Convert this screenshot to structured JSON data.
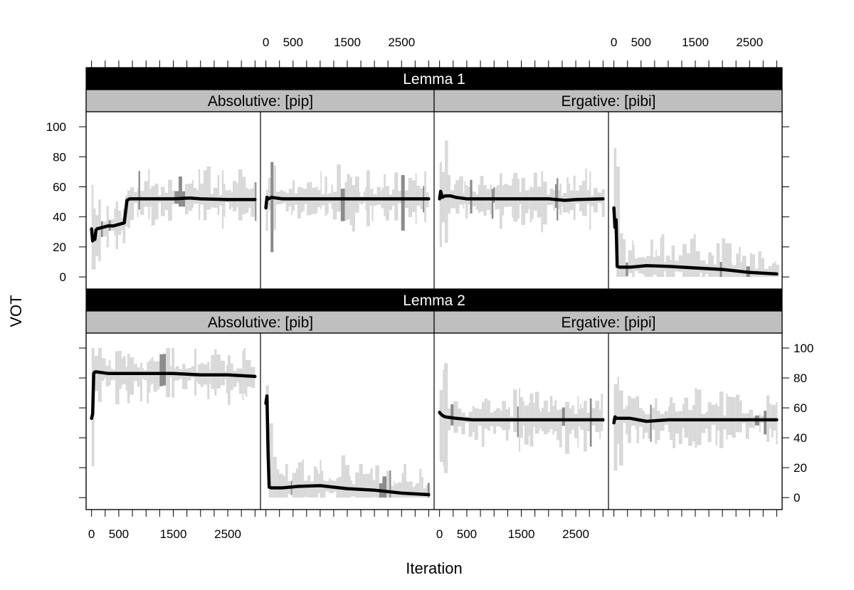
{
  "chart_data": {
    "type": "line",
    "xlabel": "Iteration",
    "ylabel": "VOT",
    "x_ticks": [
      0,
      500,
      1500,
      2500
    ],
    "x_minor_ticks": [
      0,
      250,
      500,
      750,
      1000,
      1250,
      1500,
      1750,
      2000,
      2250,
      2500,
      2750,
      3000
    ],
    "xlim": [
      -100,
      3100
    ],
    "y_ticks": [
      0,
      20,
      40,
      60,
      80,
      100
    ],
    "ylim": [
      -8,
      110
    ],
    "strips": {
      "lemma_1": "Lemma  1",
      "lemma_2": "Lemma  2",
      "abs_pip": "Absolutive: [pip]",
      "erg_pibi": "Ergative: [pibi]",
      "abs_pib": "Absolutive: [pib]",
      "erg_pipi": "Ergative: [pipi]"
    },
    "panels": [
      {
        "lemma": 1,
        "condition": "Absolutive: [pip]",
        "sub": 1,
        "x": [
          0,
          20,
          40,
          60,
          80,
          100,
          200,
          300,
          400,
          500,
          600,
          650,
          700,
          800,
          1000,
          1500,
          1800,
          2000,
          2500,
          3000
        ],
        "mean": [
          32,
          24,
          26,
          25,
          31,
          32,
          33,
          34,
          34,
          35,
          36,
          51,
          52,
          52,
          52,
          52,
          52.5,
          52,
          51.5,
          51.5
        ],
        "band_range": [
          5,
          84
        ]
      },
      {
        "lemma": 1,
        "condition": "Absolutive: [pip]",
        "sub": 2,
        "x": [
          0,
          20,
          50,
          100,
          300,
          600,
          1000,
          1500,
          2000,
          2500,
          3000
        ],
        "mean": [
          46,
          53,
          52,
          53,
          52,
          52,
          52,
          52,
          52,
          52,
          52
        ],
        "band_range": [
          0,
          98
        ]
      },
      {
        "lemma": 1,
        "condition": "Ergative: [pibi]",
        "sub": 1,
        "x": [
          0,
          20,
          50,
          100,
          200,
          300,
          500,
          1000,
          1500,
          2000,
          2300,
          2500,
          3000
        ],
        "mean": [
          52,
          57,
          53,
          54,
          54,
          53,
          52,
          52,
          52,
          52,
          51,
          51.5,
          52
        ],
        "band_range": [
          20,
          98
        ]
      },
      {
        "lemma": 1,
        "condition": "Ergative: [pibi]",
        "sub": 2,
        "x": [
          0,
          20,
          40,
          60,
          100,
          300,
          600,
          1000,
          1500,
          2000,
          2500,
          3000
        ],
        "mean": [
          46,
          33,
          38,
          7,
          6.5,
          6.5,
          7.5,
          7,
          6,
          5,
          3,
          2
        ],
        "band_range": [
          0,
          87
        ]
      },
      {
        "lemma": 2,
        "condition": "Absolutive: [pib]",
        "sub": 1,
        "x": [
          0,
          20,
          40,
          60,
          100,
          300,
          600,
          1000,
          1500,
          2000,
          2500,
          3000
        ],
        "mean": [
          53,
          56,
          83,
          84,
          84,
          83,
          83,
          83,
          83,
          82,
          82,
          81
        ],
        "band_range": [
          3,
          100
        ]
      },
      {
        "lemma": 2,
        "condition": "Absolutive: [pib]",
        "sub": 2,
        "x": [
          0,
          20,
          40,
          60,
          100,
          300,
          600,
          1000,
          1500,
          2000,
          2500,
          3000
        ],
        "mean": [
          63,
          68,
          30,
          7,
          6.5,
          6.5,
          7.5,
          8,
          6,
          5,
          3,
          2
        ],
        "band_range": [
          0,
          75
        ]
      },
      {
        "lemma": 2,
        "condition": "Ergative: [pipi]",
        "sub": 1,
        "x": [
          0,
          20,
          50,
          100,
          300,
          600,
          1000,
          1500,
          2000,
          2500,
          3000
        ],
        "mean": [
          57,
          56,
          55,
          54,
          53,
          52,
          52,
          52,
          52,
          52,
          52
        ],
        "band_range": [
          5,
          95
        ]
      },
      {
        "lemma": 2,
        "condition": "Ergative: [pipi]",
        "sub": 2,
        "x": [
          0,
          20,
          50,
          100,
          300,
          600,
          1000,
          1500,
          2000,
          2500,
          3000
        ],
        "mean": [
          50,
          54,
          53,
          53,
          53,
          51,
          52,
          52,
          52,
          52,
          52
        ],
        "band_range": [
          18,
          92
        ]
      }
    ]
  }
}
